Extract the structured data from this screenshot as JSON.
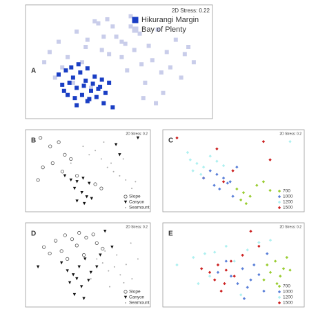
{
  "chart_data": [
    {
      "type": "scatter",
      "label": "A",
      "stress": "2D Stress: 0.22",
      "legend": "upper right",
      "series": [
        {
          "name": "Hikurangi Margin",
          "color": "#1a3ec4",
          "marker": "square",
          "x": [
            20,
            24,
            28,
            32,
            36,
            40,
            44,
            48,
            22,
            26,
            30,
            34,
            38,
            42,
            46,
            25,
            29,
            33,
            37,
            41,
            45,
            27,
            31,
            35,
            39,
            43,
            30,
            36,
            50,
            23
          ],
          "y": [
            38,
            42,
            35,
            40,
            44,
            36,
            33,
            30,
            28,
            30,
            25,
            27,
            22,
            24,
            20,
            18,
            15,
            18,
            14,
            16,
            10,
            45,
            48,
            32,
            29,
            26,
            8,
            12,
            6,
            22
          ]
        },
        {
          "name": "Bay of Plenty",
          "color": "#c9cdea",
          "marker": "square",
          "x": [
            15,
            20,
            25,
            30,
            35,
            40,
            45,
            50,
            55,
            60,
            65,
            70,
            75,
            80,
            85,
            90,
            95,
            22,
            33,
            44,
            55,
            66,
            77,
            88,
            28,
            38,
            48,
            58,
            68,
            78,
            52,
            62,
            72,
            82,
            42,
            47,
            57,
            67,
            12,
            18,
            92,
            36,
            60,
            74
          ],
          "y": [
            60,
            70,
            55,
            80,
            65,
            90,
            75,
            85,
            70,
            95,
            78,
            66,
            82,
            60,
            72,
            58,
            50,
            45,
            50,
            62,
            55,
            48,
            40,
            35,
            30,
            25,
            58,
            42,
            30,
            20,
            75,
            62,
            52,
            45,
            88,
            92,
            68,
            15,
            50,
            35,
            65,
            72,
            85,
            10
          ]
        }
      ]
    },
    {
      "type": "scatter",
      "label": "B",
      "stress": "2D Stress: 0.2",
      "legend": "lower right",
      "series": [
        {
          "name": "Slope",
          "color": "#555555",
          "marker": "circle",
          "x": [
            10,
            18,
            25,
            30,
            35,
            12,
            20,
            28,
            8,
            40,
            55,
            60
          ],
          "y": [
            80,
            70,
            75,
            60,
            55,
            45,
            50,
            40,
            30,
            35,
            25,
            20
          ]
        },
        {
          "name": "Canyon",
          "color": "#111111",
          "marker": "triangle",
          "x": [
            30,
            35,
            40,
            45,
            50,
            38,
            44,
            48,
            52,
            40,
            46,
            90,
            72,
            75
          ],
          "y": [
            35,
            30,
            28,
            32,
            26,
            20,
            15,
            10,
            8,
            5,
            2,
            80,
            72,
            60
          ]
        },
        {
          "name": "Seamount",
          "color": "#aaaaaa",
          "marker": "dot",
          "x": [
            50,
            60,
            65,
            70,
            75,
            80,
            85,
            55,
            62,
            68,
            45,
            35,
            78,
            88
          ],
          "y": [
            60,
            55,
            45,
            40,
            35,
            30,
            20,
            65,
            75,
            50,
            70,
            50,
            55,
            28
          ]
        }
      ]
    },
    {
      "type": "scatter",
      "label": "C",
      "stress": "2D Stress: 0.2",
      "legend": "lower right",
      "series": [
        {
          "name": "700",
          "color": "#9acd32",
          "marker": "diamond",
          "x": [
            55,
            60,
            65,
            70,
            75,
            80,
            58,
            62
          ],
          "y": [
            30,
            25,
            20,
            35,
            40,
            28,
            15,
            10
          ]
        },
        {
          "name": "1000",
          "color": "#5a7fd8",
          "marker": "diamond",
          "x": [
            35,
            40,
            45,
            50,
            55,
            38,
            48,
            42,
            30,
            52
          ],
          "y": [
            55,
            50,
            45,
            40,
            60,
            35,
            38,
            30,
            45,
            20
          ]
        },
        {
          "name": "1200",
          "color": "#aef0f0",
          "marker": "diamond",
          "x": [
            20,
            25,
            30,
            35,
            22,
            28,
            95,
            40,
            45,
            18
          ],
          "y": [
            70,
            65,
            60,
            75,
            55,
            50,
            95,
            68,
            62,
            80
          ]
        },
        {
          "name": "1500",
          "color": "#cc2222",
          "marker": "diamond",
          "x": [
            10,
            40,
            75,
            80,
            30,
            45,
            52
          ],
          "y": [
            100,
            85,
            95,
            70,
            45,
            40,
            55
          ]
        }
      ]
    },
    {
      "type": "scatter",
      "label": "D",
      "stress": "2D Stress: 0.2",
      "legend": "lower right",
      "series": [
        {
          "name": "Slope",
          "color": "#555555",
          "marker": "circle",
          "x": [
            10,
            20,
            28,
            34,
            40,
            46,
            52,
            25,
            38,
            44,
            30,
            15,
            55,
            60
          ],
          "y": [
            70,
            78,
            85,
            80,
            88,
            82,
            86,
            65,
            72,
            60,
            55,
            62,
            75,
            68
          ]
        },
        {
          "name": "Canyon",
          "color": "#111111",
          "marker": "triangle",
          "x": [
            5,
            25,
            30,
            35,
            40,
            45,
            50,
            32,
            38,
            42,
            48,
            36,
            44,
            55,
            58,
            62,
            68
          ],
          "y": [
            45,
            50,
            40,
            35,
            45,
            55,
            38,
            25,
            30,
            20,
            28,
            10,
            5,
            45,
            60,
            90,
            70
          ]
        },
        {
          "name": "Seamount",
          "color": "#aaaaaa",
          "marker": "dot",
          "x": [
            55,
            60,
            65,
            70,
            75,
            80,
            85,
            90,
            62,
            72,
            78,
            66,
            50,
            84
          ],
          "y": [
            55,
            50,
            40,
            45,
            35,
            48,
            30,
            55,
            65,
            60,
            25,
            20,
            30,
            75
          ]
        }
      ]
    },
    {
      "type": "scatter",
      "label": "E",
      "stress": "2D Stress: 0.2",
      "legend": "lower right",
      "series": [
        {
          "name": "700",
          "color": "#9acd32",
          "marker": "diamond",
          "x": [
            60,
            65,
            70,
            62,
            68,
            72,
            58,
            66,
            74
          ],
          "y": [
            55,
            60,
            50,
            45,
            40,
            65,
            35,
            30,
            48
          ]
        },
        {
          "name": "1000",
          "color": "#5a7fd8",
          "marker": "diamond",
          "x": [
            30,
            38,
            45,
            50,
            55,
            42,
            48,
            52,
            35,
            58,
            60,
            46
          ],
          "y": [
            45,
            40,
            50,
            35,
            42,
            30,
            25,
            55,
            60,
            20,
            70,
            10
          ]
        },
        {
          "name": "1200",
          "color": "#aef0f0",
          "marker": "diamond",
          "x": [
            5,
            15,
            22,
            28,
            35,
            40,
            48,
            55,
            62,
            25,
            18,
            44
          ],
          "y": [
            55,
            65,
            70,
            72,
            80,
            60,
            75,
            85,
            88,
            40,
            30,
            15
          ]
        },
        {
          "name": "1500",
          "color": "#cc2222",
          "marker": "diamond",
          "x": [
            20,
            25,
            30,
            35,
            40,
            28,
            34,
            38,
            50,
            45,
            55,
            32
          ],
          "y": [
            50,
            45,
            55,
            48,
            40,
            35,
            30,
            60,
            100,
            68,
            80,
            20
          ]
        }
      ]
    }
  ]
}
